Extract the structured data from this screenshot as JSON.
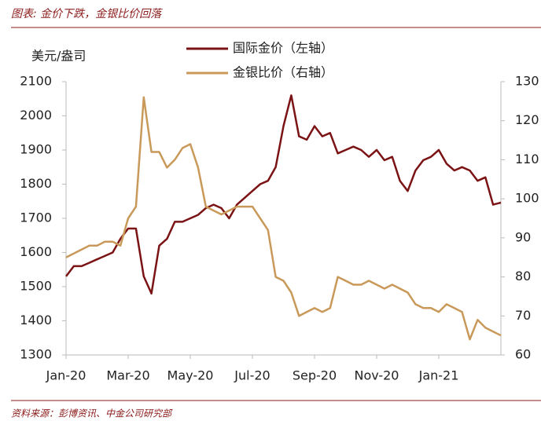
{
  "chart_data": {
    "type": "line",
    "title": "图表: 金价下跌，金银比价回落",
    "source": "资料来源：彭博资讯、中金公司研究部",
    "ylabel": "美元/盎司",
    "x": [
      0,
      0.25,
      0.5,
      0.75,
      1,
      1.25,
      1.5,
      1.75,
      2,
      2.25,
      2.5,
      2.75,
      3,
      3.25,
      3.5,
      3.75,
      4,
      4.25,
      4.5,
      4.75,
      5,
      5.25,
      5.5,
      5.75,
      6,
      6.25,
      6.5,
      6.75,
      7,
      7.25,
      7.5,
      7.75,
      8,
      8.25,
      8.5,
      8.75,
      9,
      9.25,
      9.5,
      9.75,
      10,
      10.25,
      10.5,
      10.75,
      11,
      11.25,
      11.5,
      11.75,
      12,
      12.25,
      12.5,
      12.75,
      13,
      13.25,
      13.5,
      13.75,
      14
    ],
    "xlim": [
      0,
      14
    ],
    "xticks": [
      {
        "value": 0,
        "label": "Jan-20"
      },
      {
        "value": 2,
        "label": "Mar-20"
      },
      {
        "value": 4,
        "label": "May-20"
      },
      {
        "value": 6,
        "label": "Jul-20"
      },
      {
        "value": 8,
        "label": "Sep-20"
      },
      {
        "value": 10,
        "label": "Nov-20"
      },
      {
        "value": 12,
        "label": "Jan-21"
      }
    ],
    "ylim": [
      1300,
      2100
    ],
    "yticks": [
      1300,
      1400,
      1500,
      1600,
      1700,
      1800,
      1900,
      2000,
      2100
    ],
    "y2lim": [
      60,
      130
    ],
    "y2ticks": [
      60,
      70,
      80,
      90,
      100,
      110,
      120,
      130
    ],
    "series": [
      {
        "name": "国际金价（左轴）",
        "color": "#7b1315",
        "axis": "y",
        "values": [
          1530,
          1560,
          1560,
          1570,
          1580,
          1590,
          1600,
          1640,
          1670,
          1670,
          1530,
          1480,
          1620,
          1640,
          1690,
          1690,
          1700,
          1710,
          1730,
          1740,
          1730,
          1700,
          1740,
          1760,
          1780,
          1800,
          1810,
          1850,
          1970,
          2060,
          1940,
          1930,
          1970,
          1940,
          1950,
          1890,
          1900,
          1910,
          1900,
          1880,
          1900,
          1870,
          1880,
          1810,
          1780,
          1840,
          1870,
          1880,
          1900,
          1860,
          1840,
          1850,
          1840,
          1810,
          1820,
          1740,
          1746
        ]
      },
      {
        "name": "金银比价（右轴）",
        "color": "#c9995a",
        "axis": "y2",
        "values": [
          85,
          86,
          87,
          88,
          88,
          89,
          89,
          88,
          95,
          98,
          126,
          112,
          112,
          108,
          110,
          113,
          114,
          108,
          98,
          97,
          96,
          97,
          98,
          98,
          98,
          95,
          92,
          80,
          79,
          76,
          70,
          71,
          72,
          71,
          72,
          80,
          79,
          78,
          78,
          79,
          78,
          77,
          78,
          77,
          76,
          73,
          72,
          72,
          71,
          73,
          72,
          71,
          64,
          69,
          67,
          66,
          65
        ]
      }
    ],
    "legend": "top"
  }
}
